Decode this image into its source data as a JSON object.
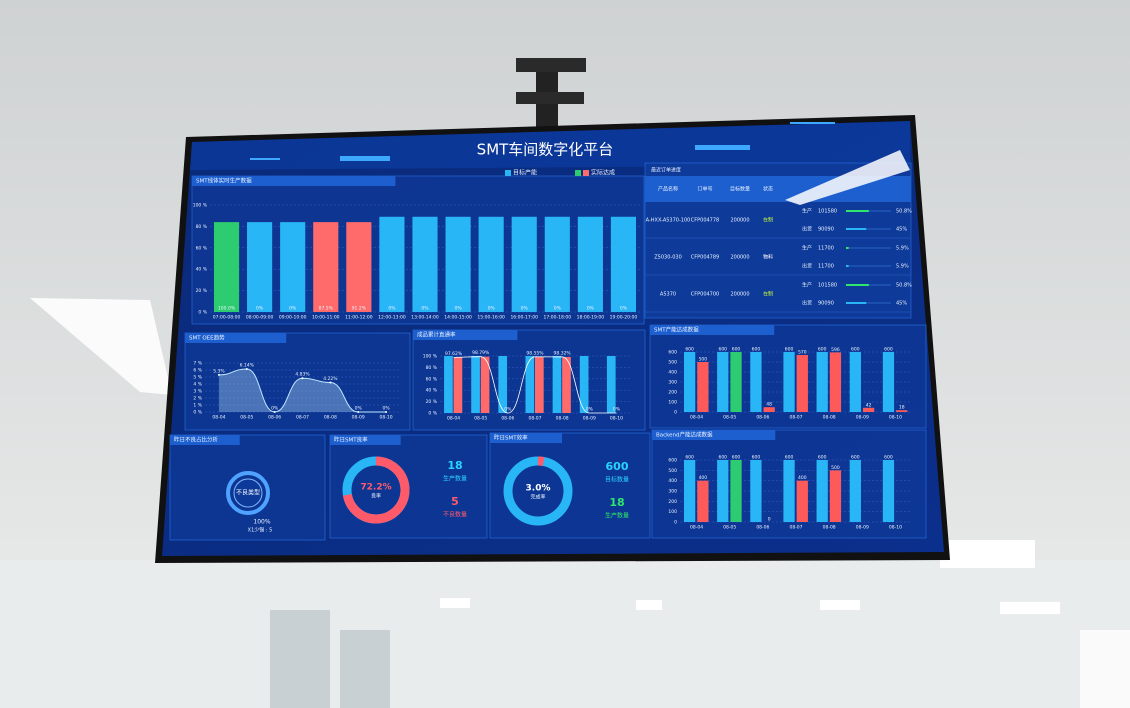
{
  "header": {
    "title": "SMT车间数字化平台"
  },
  "chart_data": [
    {
      "type": "bar",
      "title": "SMT线体实时生产数据",
      "categories": [
        "07:00-08:00",
        "08:00-09:00",
        "09:00-10:00",
        "10:00-11:00",
        "11:00-12:00",
        "12:00-13:00",
        "13:00-14:00",
        "14:00-15:00",
        "15:00-16:00",
        "16:00-17:00",
        "17:00-18:00",
        "18:00-19:00",
        "19:00-20:00"
      ],
      "values": [
        84,
        84,
        84,
        84,
        84,
        89,
        89,
        89,
        89,
        89,
        89,
        89,
        89
      ],
      "colors": [
        "#2ecc71",
        "#29b6f6",
        "#29b6f6",
        "#ff6b6b",
        "#ff6b6b",
        "#29b6f6",
        "#29b6f6",
        "#29b6f6",
        "#29b6f6",
        "#29b6f6",
        "#29b6f6",
        "#29b6f6",
        "#29b6f6"
      ],
      "rate_labels": [
        "100.0%",
        "0%",
        "0%",
        "87.5%",
        "91.2%",
        "0%",
        "0%",
        "0%",
        "0%",
        "0%",
        "0%",
        "0%",
        "0%"
      ],
      "legend": [
        {
          "name": "目标产能",
          "color": "#29b6f6"
        },
        {
          "name": "实际达成",
          "colors": [
            "#2ecc71",
            "#ff6b6b"
          ]
        }
      ],
      "ylim": [
        0,
        100
      ],
      "yticks": [
        {
          "value": 0,
          "label": "0 %"
        },
        {
          "value": 20,
          "label": "20 %"
        },
        {
          "value": 40,
          "label": "40 %"
        },
        {
          "value": 60,
          "label": "60 %"
        },
        {
          "value": 80,
          "label": "80 %"
        },
        {
          "value": 100,
          "label": "100 %"
        }
      ],
      "grid": true
    },
    {
      "type": "area",
      "title": "SMT OEE趋势",
      "categories": [
        "08-04",
        "08-05",
        "08-06",
        "08-07",
        "08-08",
        "08-09",
        "08-10"
      ],
      "values": [
        5.3,
        6.14,
        0,
        4.83,
        4.22,
        0,
        0
      ],
      "value_labels": [
        "5.3%",
        "6.14%",
        "0%",
        "4.83%",
        "4.22%",
        "0%",
        "0%"
      ],
      "color": "#bfe6ff",
      "ylim": [
        0,
        7
      ],
      "yticks": [
        {
          "value": 0,
          "label": "0 %"
        },
        {
          "value": 1,
          "label": "1 %"
        },
        {
          "value": 2,
          "label": "2 %"
        },
        {
          "value": 3,
          "label": "3 %"
        },
        {
          "value": 4,
          "label": "4 %"
        },
        {
          "value": 5,
          "label": "5 %"
        },
        {
          "value": 6,
          "label": "6 %"
        },
        {
          "value": 7,
          "label": "7 %"
        }
      ],
      "grid": true
    },
    {
      "type": "bar-line",
      "title": "成品累计直通率",
      "categories": [
        "08-04",
        "08-05",
        "08-06",
        "08-07",
        "08-08",
        "08-09",
        "08-10"
      ],
      "series": [
        {
          "color": "#29b6f6",
          "values": [
            100,
            100,
            100,
            100,
            100,
            100,
            100
          ]
        },
        {
          "color": "#ff6b6b",
          "values": [
            97.62,
            98.79,
            0,
            98.55,
            98.32,
            0,
            0
          ],
          "value_labels": [
            "97.62%",
            "98.79%",
            "0%",
            "98.55%",
            "98.32%",
            "0%",
            "0%"
          ]
        }
      ],
      "ylim": [
        0,
        100
      ],
      "yticks": [
        {
          "value": 0,
          "label": "0 %"
        },
        {
          "value": 20,
          "label": "20 %"
        },
        {
          "value": 40,
          "label": "40 %"
        },
        {
          "value": 60,
          "label": "60 %"
        },
        {
          "value": 80,
          "label": "80 %"
        },
        {
          "value": 100,
          "label": "100 %"
        }
      ],
      "grid": true
    },
    {
      "type": "grouped-bar",
      "title": "SMT产能达成数据",
      "categories": [
        "08-04",
        "08-05",
        "08-06",
        "08-07",
        "08-08",
        "08-09",
        "08-10"
      ],
      "series": [
        {
          "color": "#29b6f6",
          "values": [
            600,
            600,
            600,
            600,
            600,
            600,
            600
          ]
        },
        {
          "colors": [
            "#ff5a5a",
            "#2ecc71",
            "#ff5a5a",
            "#ff5a5a",
            "#ff5a5a",
            "#ff5a5a",
            "#ff5a5a"
          ],
          "values": [
            500,
            600,
            48,
            570,
            596,
            42,
            18
          ]
        }
      ],
      "ylim": [
        0,
        600
      ],
      "yticks": [
        0,
        100,
        200,
        300,
        400,
        500,
        600
      ],
      "grid": true
    },
    {
      "type": "grouped-bar",
      "title": "Backend产能达成数据",
      "categories": [
        "08-04",
        "08-05",
        "08-06",
        "08-07",
        "08-08",
        "08-09",
        "08-10"
      ],
      "series": [
        {
          "color": "#29b6f6",
          "values": [
            600,
            600,
            600,
            600,
            600,
            600,
            600
          ]
        },
        {
          "colors": [
            "#ff5a5a",
            "#2ecc71",
            "#ff5a5a",
            "#ff5a5a",
            "#ff5a5a",
            "#ff5a5a",
            "#ff5a5a"
          ],
          "values": [
            400,
            600,
            0,
            400,
            500,
            null,
            null
          ]
        }
      ],
      "ylim": [
        0,
        600
      ],
      "yticks": [
        0,
        100,
        200,
        300,
        400,
        500,
        600
      ],
      "grid": true
    },
    {
      "type": "donut",
      "title": "昨日不良占比分析",
      "center_label": "不良类型",
      "values": [
        100
      ],
      "value_labels": [
        "100%"
      ],
      "categories": [
        "X1少锡 : 5"
      ],
      "color": "#4fa3ff"
    },
    {
      "type": "donut",
      "title": "昨日SMT良率",
      "center_label": "良率",
      "values": [
        72.2
      ],
      "value_labels": [
        "72.2%"
      ],
      "color": "#ff5a6a",
      "rest_color": "#29b6f6",
      "stats": [
        {
          "value": 18,
          "label": "生产数量",
          "color": "#29d3ff"
        },
        {
          "value": 5,
          "label": "不良数量",
          "color": "#ff5a6a"
        }
      ]
    },
    {
      "type": "donut",
      "title": "昨日SMT效率",
      "center_label": "完成率",
      "values": [
        3.0
      ],
      "value_labels": [
        "3.0%"
      ],
      "color": "#ff5a6a",
      "rest_color": "#29b6f6",
      "stats": [
        {
          "value": 600,
          "label": "目标数量",
          "color": "#29d3ff"
        },
        {
          "value": 18,
          "label": "生产数量",
          "color": "#2ee66b"
        }
      ]
    }
  ],
  "orders": {
    "title": "最近订单进度",
    "columns": [
      "产品名称",
      "订单号",
      "目标数量",
      "状态"
    ],
    "rows": [
      {
        "product": "A-HXX-A5370-100",
        "order": "CFP004778",
        "qty": 200000,
        "status": "在制",
        "progress": [
          {
            "label": "生产",
            "count": 101580,
            "pct": 50.8,
            "pct_label": "50.8%"
          },
          {
            "label": "出货",
            "count": 90090,
            "pct": 45,
            "pct_label": "45%"
          }
        ]
      },
      {
        "product": "Z5030-030",
        "order": "CFP004789",
        "qty": 200000,
        "status": "物料",
        "progress": [
          {
            "label": "生产",
            "count": 11700,
            "pct": 5.9,
            "pct_label": "5.9%"
          },
          {
            "label": "出货",
            "count": 11700,
            "pct": 5.9,
            "pct_label": "5.9%"
          }
        ]
      },
      {
        "product": "A5370",
        "order": "CFP004700",
        "qty": 200000,
        "status": "在制",
        "progress": [
          {
            "label": "生产",
            "count": 101580,
            "pct": 50.8,
            "pct_label": "50.8%"
          },
          {
            "label": "出货",
            "count": 90090,
            "pct": 45,
            "pct_label": "45%"
          }
        ]
      }
    ]
  }
}
